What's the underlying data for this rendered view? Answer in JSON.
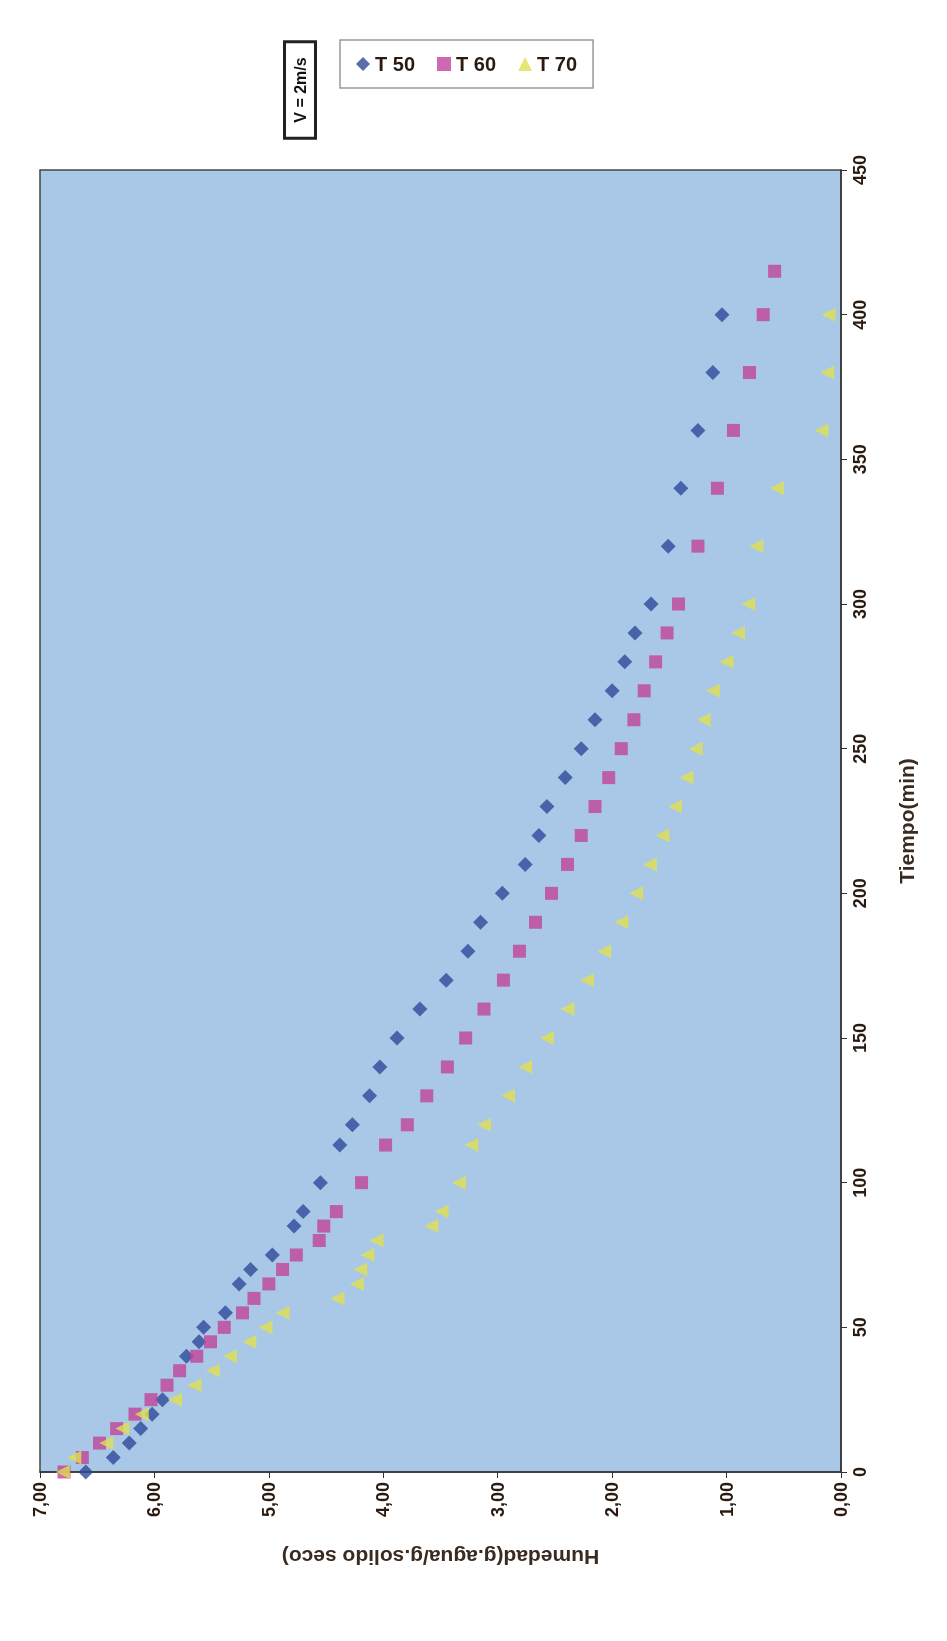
{
  "chart_data": {
    "type": "scatter",
    "xlabel": "Humedad(g.agua/g.solido seco)",
    "ylabel": "Tiempo(min)",
    "annotations": [
      "V = 2m/s"
    ],
    "ylim": [
      0,
      450
    ],
    "yticks": [
      0,
      50,
      100,
      150,
      200,
      250,
      300,
      350,
      400,
      450
    ],
    "xlim": [
      7,
      0
    ],
    "xticks": [
      {
        "value": 7,
        "label": "7,00"
      },
      {
        "value": 6,
        "label": "6,00"
      },
      {
        "value": 5,
        "label": "5,00"
      },
      {
        "value": 4,
        "label": "4,00"
      },
      {
        "value": 3,
        "label": "3,00"
      },
      {
        "value": 2,
        "label": "2,00"
      },
      {
        "value": 1,
        "label": "1,00"
      },
      {
        "value": 0,
        "label": "0,00"
      }
    ],
    "legend": "top right",
    "series": [
      {
        "name": "T 50",
        "color": "#2e4a9a",
        "marker": "diamond",
        "values": [
          0,
          5,
          10,
          15,
          20,
          25,
          null,
          40,
          45,
          50,
          55,
          65,
          70,
          75,
          85,
          90,
          100,
          113,
          120,
          130,
          140,
          150,
          160,
          170,
          180,
          190,
          200,
          210,
          220,
          230,
          240,
          250,
          260,
          270,
          280,
          290,
          300,
          320,
          340,
          360,
          380,
          400
        ],
        "x": [
          6.6,
          6.36,
          6.22,
          6.12,
          6.02,
          5.93,
          5.85,
          5.72,
          5.61,
          5.57,
          5.38,
          5.26,
          5.16,
          4.97,
          4.78,
          4.7,
          4.55,
          4.38,
          4.27,
          4.12,
          4.03,
          3.88,
          3.68,
          3.45,
          3.26,
          3.15,
          2.96,
          2.76,
          2.64,
          2.57,
          2.41,
          2.27,
          2.15,
          2.0,
          1.89,
          1.8,
          1.66,
          1.51,
          1.4,
          1.25,
          1.12,
          1.04
        ]
      },
      {
        "name": "T 60",
        "color": "#c0449a",
        "marker": "square",
        "values": [
          0,
          5,
          10,
          15,
          20,
          25,
          30,
          35,
          40,
          45,
          50,
          55,
          60,
          65,
          70,
          75,
          80,
          85,
          90,
          100,
          113,
          120,
          130,
          140,
          150,
          160,
          170,
          180,
          190,
          200,
          210,
          220,
          230,
          240,
          250,
          260,
          270,
          280,
          290,
          300,
          320,
          340,
          360,
          380,
          400,
          415
        ],
        "x": [
          6.79,
          6.63,
          6.48,
          6.33,
          6.17,
          6.03,
          5.89,
          5.78,
          5.63,
          5.51,
          5.39,
          5.23,
          5.13,
          5.0,
          4.88,
          4.76,
          4.56,
          4.52,
          4.41,
          4.19,
          3.98,
          3.79,
          3.62,
          3.44,
          3.28,
          3.12,
          2.95,
          2.81,
          2.67,
          2.53,
          2.39,
          2.27,
          2.15,
          2.03,
          1.92,
          1.81,
          1.72,
          1.62,
          1.52,
          1.42,
          1.25,
          1.08,
          0.94,
          0.8,
          0.68,
          0.58
        ]
      },
      {
        "name": "T 70",
        "color": "#e0e050",
        "marker": "triangle",
        "values": [
          0,
          5,
          10,
          15,
          20,
          25,
          30,
          35,
          40,
          45,
          50,
          55,
          60,
          65,
          70,
          75,
          80,
          85,
          90,
          100,
          113,
          120,
          130,
          140,
          150,
          160,
          170,
          180,
          190,
          200,
          210,
          220,
          230,
          240,
          250,
          260,
          270,
          280,
          290,
          300,
          320,
          340,
          360,
          380,
          400
        ],
        "x": [
          6.8,
          6.7,
          6.42,
          6.28,
          6.11,
          5.82,
          5.65,
          5.49,
          5.34,
          5.17,
          5.03,
          4.88,
          4.4,
          4.23,
          4.2,
          4.14,
          4.06,
          3.58,
          3.49,
          3.34,
          3.23,
          3.12,
          2.91,
          2.76,
          2.57,
          2.39,
          2.22,
          2.07,
          1.92,
          1.79,
          1.67,
          1.56,
          1.45,
          1.35,
          1.27,
          1.2,
          1.12,
          1.0,
          0.9,
          0.81,
          0.74,
          0.56,
          0.17,
          0.12,
          0.11
        ]
      }
    ]
  }
}
